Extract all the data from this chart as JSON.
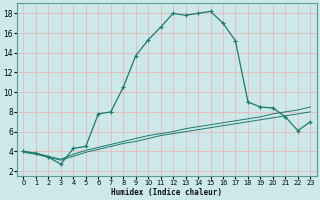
{
  "xlabel": "Humidex (Indice chaleur)",
  "background_color": "#cde8e8",
  "line_color": "#1a7a6e",
  "grid_color": "#e8b8b8",
  "xlim": [
    -0.5,
    23.5
  ],
  "ylim": [
    1.5,
    19
  ],
  "xticks": [
    0,
    1,
    2,
    3,
    4,
    5,
    6,
    7,
    8,
    9,
    10,
    11,
    12,
    13,
    14,
    15,
    16,
    17,
    18,
    19,
    20,
    21,
    22,
    23
  ],
  "yticks": [
    2,
    4,
    6,
    8,
    10,
    12,
    14,
    16,
    18
  ],
  "curve1_x": [
    0,
    1,
    2,
    3,
    4,
    5,
    6,
    7,
    8,
    9,
    10,
    11,
    12,
    13,
    14,
    15,
    16,
    17,
    18,
    19,
    20,
    21,
    22,
    23
  ],
  "curve1_y": [
    4.0,
    3.8,
    3.4,
    2.7,
    4.3,
    4.5,
    7.8,
    8.0,
    10.5,
    13.7,
    15.3,
    16.6,
    18.0,
    17.8,
    18.0,
    18.2,
    17.0,
    15.2,
    9.0,
    8.5,
    8.4,
    7.5,
    6.1,
    7.0
  ],
  "curve2_x": [
    0,
    1,
    2,
    3,
    4,
    5,
    6,
    7,
    8,
    9,
    10,
    11,
    12,
    13,
    14,
    15,
    16,
    17,
    18,
    19,
    20,
    21,
    22,
    23
  ],
  "curve2_y": [
    3.9,
    3.7,
    3.4,
    3.1,
    3.5,
    3.9,
    4.2,
    4.5,
    4.8,
    5.0,
    5.3,
    5.6,
    5.8,
    6.0,
    6.2,
    6.4,
    6.6,
    6.8,
    7.0,
    7.2,
    7.4,
    7.6,
    7.8,
    8.0
  ],
  "curve3_x": [
    0,
    1,
    2,
    3,
    4,
    5,
    6,
    7,
    8,
    9,
    10,
    11,
    12,
    13,
    14,
    15,
    16,
    17,
    18,
    19,
    20,
    21,
    22,
    23
  ],
  "curve3_y": [
    4.0,
    3.8,
    3.5,
    3.2,
    3.7,
    4.1,
    4.4,
    4.7,
    5.0,
    5.3,
    5.6,
    5.8,
    6.0,
    6.3,
    6.5,
    6.7,
    6.9,
    7.1,
    7.3,
    7.5,
    7.8,
    8.0,
    8.2,
    8.5
  ]
}
